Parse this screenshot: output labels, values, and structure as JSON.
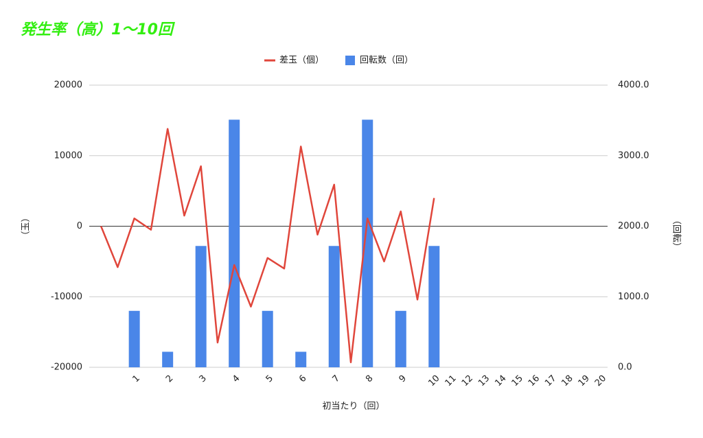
{
  "chart_data": {
    "type": "combo",
    "title": "発生率（高）1〜10回",
    "x_label": "初当たり（回）",
    "y_label": "（玉）",
    "y2_label": "（回転）",
    "categories": [
      null,
      null,
      "1",
      null,
      "2",
      null,
      "3",
      null,
      "4",
      null,
      "5",
      null,
      "6",
      null,
      "7",
      null,
      "8",
      null,
      "9",
      null,
      "10",
      "11",
      "12",
      "13",
      "14",
      "15",
      "16",
      "17",
      "18",
      "19",
      "20"
    ],
    "series": [
      {
        "name": "差玉（個）",
        "type": "line",
        "color": "#e0463b",
        "axis": "y",
        "values": [
          0,
          -5800,
          1100,
          -500,
          13800,
          1500,
          8500,
          -16500,
          -5500,
          -11400,
          -4500,
          -6000,
          11300,
          -1200,
          5900,
          -19300,
          1100,
          -5000,
          2100,
          -10400,
          4000,
          null,
          null,
          null,
          null,
          null,
          null,
          null,
          null,
          null,
          null
        ]
      },
      {
        "name": "回転数（回）",
        "type": "bar",
        "color": "#4a86e8",
        "axis": "y2",
        "values": [
          null,
          null,
          800,
          null,
          220,
          null,
          1720,
          null,
          3510,
          null,
          800,
          null,
          220,
          null,
          1720,
          null,
          3510,
          null,
          800,
          null,
          1720,
          null,
          null,
          null,
          null,
          null,
          null,
          null,
          null,
          null,
          null
        ]
      }
    ],
    "ylim": [
      -20000,
      20000
    ],
    "yticks": [
      -20000,
      -10000,
      0,
      10000,
      20000
    ],
    "y2lim": [
      0,
      4000
    ],
    "y2ticks": [
      {
        "value": 0,
        "label": "0.0"
      },
      {
        "value": 1000,
        "label": "1000.0"
      },
      {
        "value": 2000,
        "label": "2000.0"
      },
      {
        "value": 3000,
        "label": "3000.0"
      },
      {
        "value": 4000,
        "label": "4000.0"
      }
    ],
    "grid": true,
    "legend": "top"
  }
}
